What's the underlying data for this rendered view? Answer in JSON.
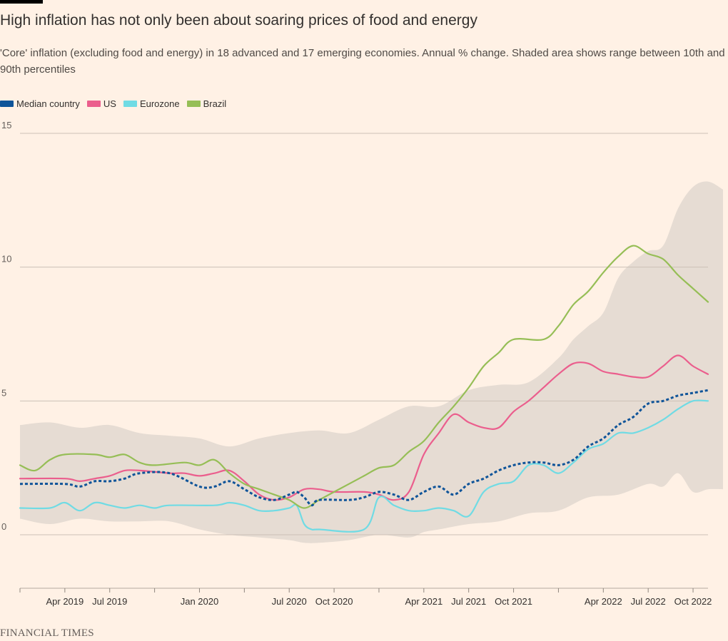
{
  "header": {
    "title": "High inflation has not only been about soaring prices of food and energy",
    "subtitle": "'Core' inflation (excluding food and energy) in 18 advanced and 17 emerging economies. Annual % change. Shaded area shows range between 10th and 90th percentiles"
  },
  "source": "FINANCIAL TIMES",
  "colors": {
    "median": "#0F5499",
    "us": "#EB5E8D",
    "eurozone": "#70DBE4",
    "brazil": "#96BE56",
    "band": "#E6DCD3",
    "grid": "#CCC1B7",
    "axis_text": "#66605C"
  },
  "chart_data": {
    "type": "line",
    "title": "High inflation has not only been about soaring prices of food and energy",
    "subtitle": "'Core' inflation (excluding food and energy) in 18 advanced and 17 emerging economies. Annual % change. Shaded area shows range between 10th and 90th percentiles",
    "xlabel": "",
    "ylabel": "",
    "x_start": "Jan 2019",
    "x_end": "Dec 2022",
    "ylim": [
      -2,
      15
    ],
    "y_ticks": [
      0,
      5,
      10,
      15
    ],
    "x_ticks": [
      {
        "label": "Apr 2019",
        "month": 3
      },
      {
        "label": "Jul 2019",
        "month": 6
      },
      {
        "label": "Jan 2020",
        "month": 12
      },
      {
        "label": "Jul 2020",
        "month": 18
      },
      {
        "label": "Oct 2020",
        "month": 21
      },
      {
        "label": "Apr 2021",
        "month": 27
      },
      {
        "label": "Jul 2021",
        "month": 30
      },
      {
        "label": "Oct 2021",
        "month": 33
      },
      {
        "label": "Apr 2022",
        "month": 39
      },
      {
        "label": "Jul 2022",
        "month": 42
      },
      {
        "label": "Oct 2022",
        "month": 45
      }
    ],
    "grid": true,
    "legend_position": "top-left",
    "band": {
      "name": "10th-90th percentile range",
      "upper": [
        [
          0,
          4.1
        ],
        [
          2,
          4.2
        ],
        [
          4,
          4.0
        ],
        [
          6,
          4.1
        ],
        [
          8,
          3.8
        ],
        [
          10,
          3.7
        ],
        [
          12,
          3.6
        ],
        [
          14,
          3.3
        ],
        [
          16,
          3.6
        ],
        [
          18,
          3.8
        ],
        [
          20,
          3.9
        ],
        [
          22,
          3.8
        ],
        [
          24,
          4.3
        ],
        [
          26,
          4.8
        ],
        [
          28,
          4.8
        ],
        [
          30,
          5.4
        ],
        [
          32,
          5.6
        ],
        [
          34,
          5.7
        ],
        [
          36,
          6.6
        ],
        [
          37,
          7.3
        ],
        [
          38,
          7.8
        ],
        [
          39,
          8.3
        ],
        [
          40,
          9.6
        ],
        [
          41,
          10.2
        ],
        [
          42,
          10.6
        ],
        [
          43,
          10.8
        ],
        [
          44,
          12.2
        ],
        [
          45,
          13.0
        ],
        [
          46,
          13.2
        ],
        [
          47,
          12.9
        ]
      ],
      "lower": [
        [
          0,
          0.6
        ],
        [
          2,
          0.4
        ],
        [
          4,
          0.6
        ],
        [
          6,
          0.5
        ],
        [
          8,
          0.5
        ],
        [
          10,
          0.5
        ],
        [
          12,
          0.2
        ],
        [
          14,
          0.0
        ],
        [
          16,
          -0.1
        ],
        [
          18,
          -0.2
        ],
        [
          19,
          -0.3
        ],
        [
          20,
          -0.3
        ],
        [
          22,
          -0.2
        ],
        [
          24,
          0.0
        ],
        [
          26,
          -0.1
        ],
        [
          27,
          0.1
        ],
        [
          28,
          0.2
        ],
        [
          30,
          0.4
        ],
        [
          32,
          0.5
        ],
        [
          34,
          0.8
        ],
        [
          36,
          0.9
        ],
        [
          38,
          1.4
        ],
        [
          40,
          1.5
        ],
        [
          42,
          1.9
        ],
        [
          43,
          1.8
        ],
        [
          44,
          2.3
        ],
        [
          45,
          1.6
        ],
        [
          46,
          1.7
        ],
        [
          47,
          1.7
        ]
      ]
    },
    "series": [
      {
        "name": "Median country",
        "key": "median",
        "dashed": true,
        "values": [
          [
            0,
            1.9
          ],
          [
            3,
            1.9
          ],
          [
            4,
            1.8
          ],
          [
            5,
            2.0
          ],
          [
            6,
            2.0
          ],
          [
            7,
            2.1
          ],
          [
            8,
            2.3
          ],
          [
            10,
            2.3
          ],
          [
            12,
            1.8
          ],
          [
            13,
            1.8
          ],
          [
            14,
            2.0
          ],
          [
            15,
            1.7
          ],
          [
            16,
            1.4
          ],
          [
            17,
            1.3
          ],
          [
            18,
            1.5
          ],
          [
            18.5,
            1.6
          ],
          [
            19,
            1.4
          ],
          [
            19.5,
            1.1
          ],
          [
            20,
            1.3
          ],
          [
            22,
            1.3
          ],
          [
            23,
            1.4
          ],
          [
            24,
            1.6
          ],
          [
            25,
            1.5
          ],
          [
            26,
            1.3
          ],
          [
            27,
            1.6
          ],
          [
            28,
            1.8
          ],
          [
            29,
            1.5
          ],
          [
            30,
            1.9
          ],
          [
            31,
            2.1
          ],
          [
            32,
            2.4
          ],
          [
            33,
            2.6
          ],
          [
            34,
            2.7
          ],
          [
            35,
            2.7
          ],
          [
            36,
            2.6
          ],
          [
            37,
            2.8
          ],
          [
            38,
            3.3
          ],
          [
            39,
            3.6
          ],
          [
            40,
            4.1
          ],
          [
            41,
            4.4
          ],
          [
            42,
            4.9
          ],
          [
            43,
            5.0
          ],
          [
            44,
            5.2
          ],
          [
            45,
            5.3
          ],
          [
            46,
            5.4
          ]
        ]
      },
      {
        "name": "US",
        "key": "us",
        "dashed": false,
        "values": [
          [
            0,
            2.1
          ],
          [
            3,
            2.1
          ],
          [
            4,
            2.0
          ],
          [
            5,
            2.1
          ],
          [
            6,
            2.2
          ],
          [
            7,
            2.4
          ],
          [
            8,
            2.4
          ],
          [
            10,
            2.3
          ],
          [
            11,
            2.3
          ],
          [
            12,
            2.2
          ],
          [
            13,
            2.3
          ],
          [
            14,
            2.4
          ],
          [
            15,
            2.0
          ],
          [
            16,
            1.5
          ],
          [
            17,
            1.3
          ],
          [
            18,
            1.4
          ],
          [
            19,
            1.7
          ],
          [
            20,
            1.7
          ],
          [
            21,
            1.6
          ],
          [
            23,
            1.6
          ],
          [
            24,
            1.5
          ],
          [
            25,
            1.3
          ],
          [
            26,
            1.6
          ],
          [
            27,
            3.0
          ],
          [
            28,
            3.8
          ],
          [
            29,
            4.5
          ],
          [
            30,
            4.2
          ],
          [
            31,
            4.0
          ],
          [
            32,
            4.0
          ],
          [
            33,
            4.6
          ],
          [
            34,
            5.0
          ],
          [
            35,
            5.5
          ],
          [
            36,
            6.0
          ],
          [
            37,
            6.4
          ],
          [
            38,
            6.4
          ],
          [
            39,
            6.1
          ],
          [
            40,
            6.0
          ],
          [
            41,
            5.9
          ],
          [
            42,
            5.9
          ],
          [
            43,
            6.3
          ],
          [
            44,
            6.7
          ],
          [
            45,
            6.3
          ],
          [
            46,
            6.0
          ]
        ]
      },
      {
        "name": "Eurozone",
        "key": "eurozone",
        "dashed": false,
        "values": [
          [
            0,
            1.0
          ],
          [
            2,
            1.0
          ],
          [
            3,
            1.2
          ],
          [
            4,
            0.9
          ],
          [
            5,
            1.2
          ],
          [
            6,
            1.1
          ],
          [
            7,
            1.0
          ],
          [
            8,
            1.1
          ],
          [
            9,
            1.0
          ],
          [
            10,
            1.1
          ],
          [
            13,
            1.1
          ],
          [
            14,
            1.2
          ],
          [
            15,
            1.1
          ],
          [
            16,
            0.9
          ],
          [
            17,
            0.9
          ],
          [
            18,
            1.0
          ],
          [
            18.5,
            1.1
          ],
          [
            19,
            0.4
          ],
          [
            19.5,
            0.2
          ],
          [
            20,
            0.2
          ],
          [
            23,
            0.2
          ],
          [
            24,
            1.4
          ],
          [
            25,
            1.1
          ],
          [
            26,
            0.9
          ],
          [
            27,
            0.9
          ],
          [
            28,
            1.0
          ],
          [
            29,
            0.9
          ],
          [
            30,
            0.7
          ],
          [
            31,
            1.6
          ],
          [
            32,
            1.9
          ],
          [
            33,
            2.0
          ],
          [
            34,
            2.6
          ],
          [
            35,
            2.6
          ],
          [
            36,
            2.3
          ],
          [
            37,
            2.7
          ],
          [
            38,
            3.2
          ],
          [
            39,
            3.4
          ],
          [
            40,
            3.8
          ],
          [
            41,
            3.8
          ],
          [
            42,
            4.0
          ],
          [
            43,
            4.3
          ],
          [
            44,
            4.7
          ],
          [
            45,
            5.0
          ],
          [
            46,
            5.0
          ]
        ]
      },
      {
        "name": "Brazil",
        "key": "brazil",
        "dashed": false,
        "values": [
          [
            0,
            2.6
          ],
          [
            1,
            2.4
          ],
          [
            2,
            2.8
          ],
          [
            3,
            3.0
          ],
          [
            5,
            3.0
          ],
          [
            6,
            2.9
          ],
          [
            7,
            3.0
          ],
          [
            8,
            2.7
          ],
          [
            9,
            2.6
          ],
          [
            11,
            2.7
          ],
          [
            12,
            2.6
          ],
          [
            13,
            2.8
          ],
          [
            14,
            2.3
          ],
          [
            15,
            1.9
          ],
          [
            16,
            1.7
          ],
          [
            17,
            1.5
          ],
          [
            18,
            1.3
          ],
          [
            19,
            1.0
          ],
          [
            20,
            1.3
          ],
          [
            21,
            1.6
          ],
          [
            22,
            1.9
          ],
          [
            23,
            2.2
          ],
          [
            24,
            2.5
          ],
          [
            25,
            2.6
          ],
          [
            26,
            3.1
          ],
          [
            27,
            3.5
          ],
          [
            28,
            4.2
          ],
          [
            29,
            4.8
          ],
          [
            30,
            5.5
          ],
          [
            31,
            6.3
          ],
          [
            32,
            6.8
          ],
          [
            33,
            7.3
          ],
          [
            35,
            7.3
          ],
          [
            36,
            7.8
          ],
          [
            37,
            8.6
          ],
          [
            38,
            9.1
          ],
          [
            39,
            9.8
          ],
          [
            40,
            10.4
          ],
          [
            41,
            10.8
          ],
          [
            42,
            10.5
          ],
          [
            43,
            10.3
          ],
          [
            44,
            9.7
          ],
          [
            45,
            9.2
          ],
          [
            46,
            8.7
          ]
        ]
      }
    ]
  }
}
